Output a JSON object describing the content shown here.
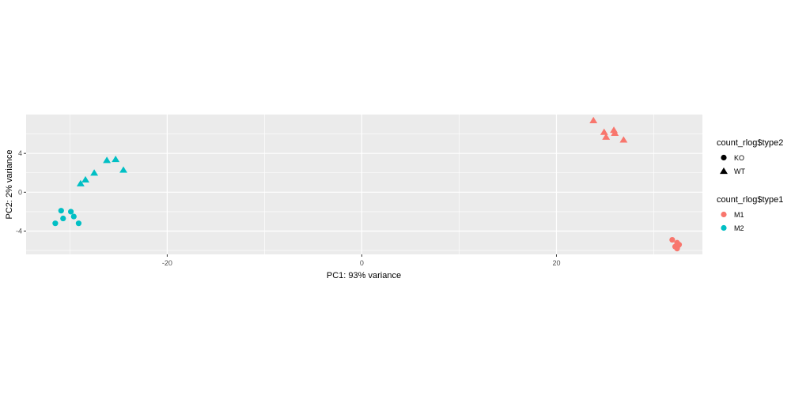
{
  "chart_data": {
    "type": "scatter",
    "xlabel": "PC1: 93% variance",
    "ylabel": "PC2: 2% variance",
    "xlim": [
      -34.5,
      35
    ],
    "ylim": [
      -6.4,
      8.0
    ],
    "xticks": [
      -20,
      0,
      20
    ],
    "yticks": [
      -4,
      0,
      4
    ],
    "xtick_labels": [
      "-20",
      "0",
      "20"
    ],
    "ytick_labels": [
      "-4",
      "0",
      "4"
    ],
    "grid": true,
    "legend_position": "right",
    "legends": [
      {
        "title": "count_rlog$type2",
        "kind": "shape",
        "entries": [
          {
            "label": "KO",
            "shape": "circle"
          },
          {
            "label": "WT",
            "shape": "triangle"
          }
        ]
      },
      {
        "title": "count_rlog$type1",
        "kind": "color",
        "entries": [
          {
            "label": "M1",
            "color": "#F8766D"
          },
          {
            "label": "M2",
            "color": "#00BFC4"
          }
        ]
      }
    ],
    "series": [
      {
        "type1": "M1",
        "type2": "WT",
        "color": "#F8766D",
        "shape": "triangle",
        "points": [
          [
            23.8,
            7.4
          ],
          [
            24.9,
            6.2
          ],
          [
            25.1,
            5.7
          ],
          [
            25.9,
            6.4
          ],
          [
            26.0,
            6.1
          ],
          [
            26.9,
            5.4
          ]
        ]
      },
      {
        "type1": "M1",
        "type2": "KO",
        "color": "#F8766D",
        "shape": "circle",
        "points": [
          [
            31.9,
            -4.9
          ],
          [
            32.4,
            -5.2
          ],
          [
            32.6,
            -5.4
          ],
          [
            32.2,
            -5.6
          ],
          [
            32.4,
            -5.8
          ],
          [
            32.5,
            -5.5
          ]
        ]
      },
      {
        "type1": "M2",
        "type2": "WT",
        "color": "#00BFC4",
        "shape": "triangle",
        "points": [
          [
            -28.9,
            0.9
          ],
          [
            -28.4,
            1.3
          ],
          [
            -27.5,
            2.0
          ],
          [
            -26.2,
            3.3
          ],
          [
            -25.3,
            3.4
          ],
          [
            -24.5,
            2.3
          ]
        ]
      },
      {
        "type1": "M2",
        "type2": "KO",
        "color": "#00BFC4",
        "shape": "circle",
        "points": [
          [
            -31.5,
            -3.2
          ],
          [
            -30.9,
            -1.9
          ],
          [
            -30.7,
            -2.7
          ],
          [
            -29.9,
            -2.0
          ],
          [
            -29.6,
            -2.5
          ],
          [
            -29.1,
            -3.2
          ]
        ]
      }
    ],
    "panel_background": "#EBEBEB",
    "gridline_color": "#FFFFFF"
  }
}
